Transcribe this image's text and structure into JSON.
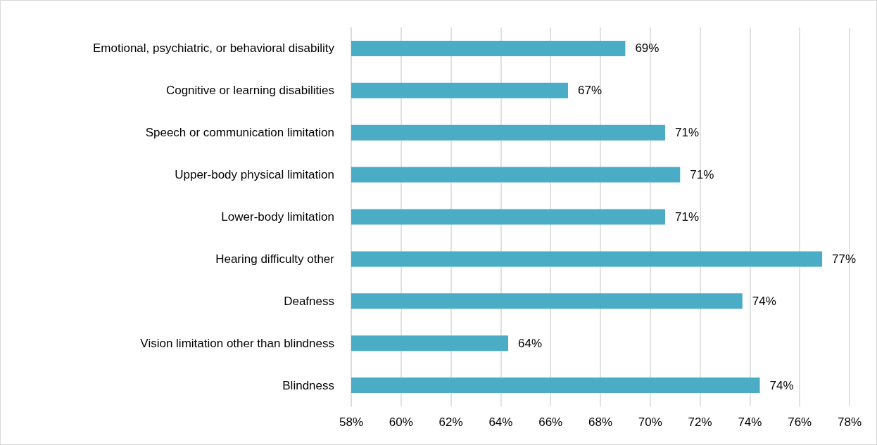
{
  "chart_data": {
    "type": "bar",
    "orientation": "horizontal",
    "categories": [
      "Emotional, psychiatric, or behavioral disability",
      "Cognitive or learning disabilities",
      "Speech or communication limitation",
      "Upper-body physical limitation",
      "Lower-body limitation",
      "Hearing difficulty other",
      "Deafness",
      "Vision limitation other than blindness",
      "Blindness"
    ],
    "values": [
      69.0,
      66.7,
      70.6,
      71.2,
      70.6,
      76.9,
      73.7,
      64.3,
      74.4
    ],
    "value_labels": [
      "69%",
      "67%",
      "71%",
      "71%",
      "71%",
      "77%",
      "74%",
      "64%",
      "74%"
    ],
    "color": "#4bacc6",
    "xlim": [
      58,
      78
    ],
    "xticks": [
      {
        "value": 58,
        "label": "58%"
      },
      {
        "value": 60,
        "label": "60%"
      },
      {
        "value": 62,
        "label": "62%"
      },
      {
        "value": 64,
        "label": "64%"
      },
      {
        "value": 66,
        "label": "66%"
      },
      {
        "value": 68,
        "label": "68%"
      },
      {
        "value": 70,
        "label": "70%"
      },
      {
        "value": 72,
        "label": "72%"
      },
      {
        "value": 74,
        "label": "74%"
      },
      {
        "value": 76,
        "label": "76%"
      },
      {
        "value": 78,
        "label": "78%"
      }
    ],
    "grid": "x"
  }
}
